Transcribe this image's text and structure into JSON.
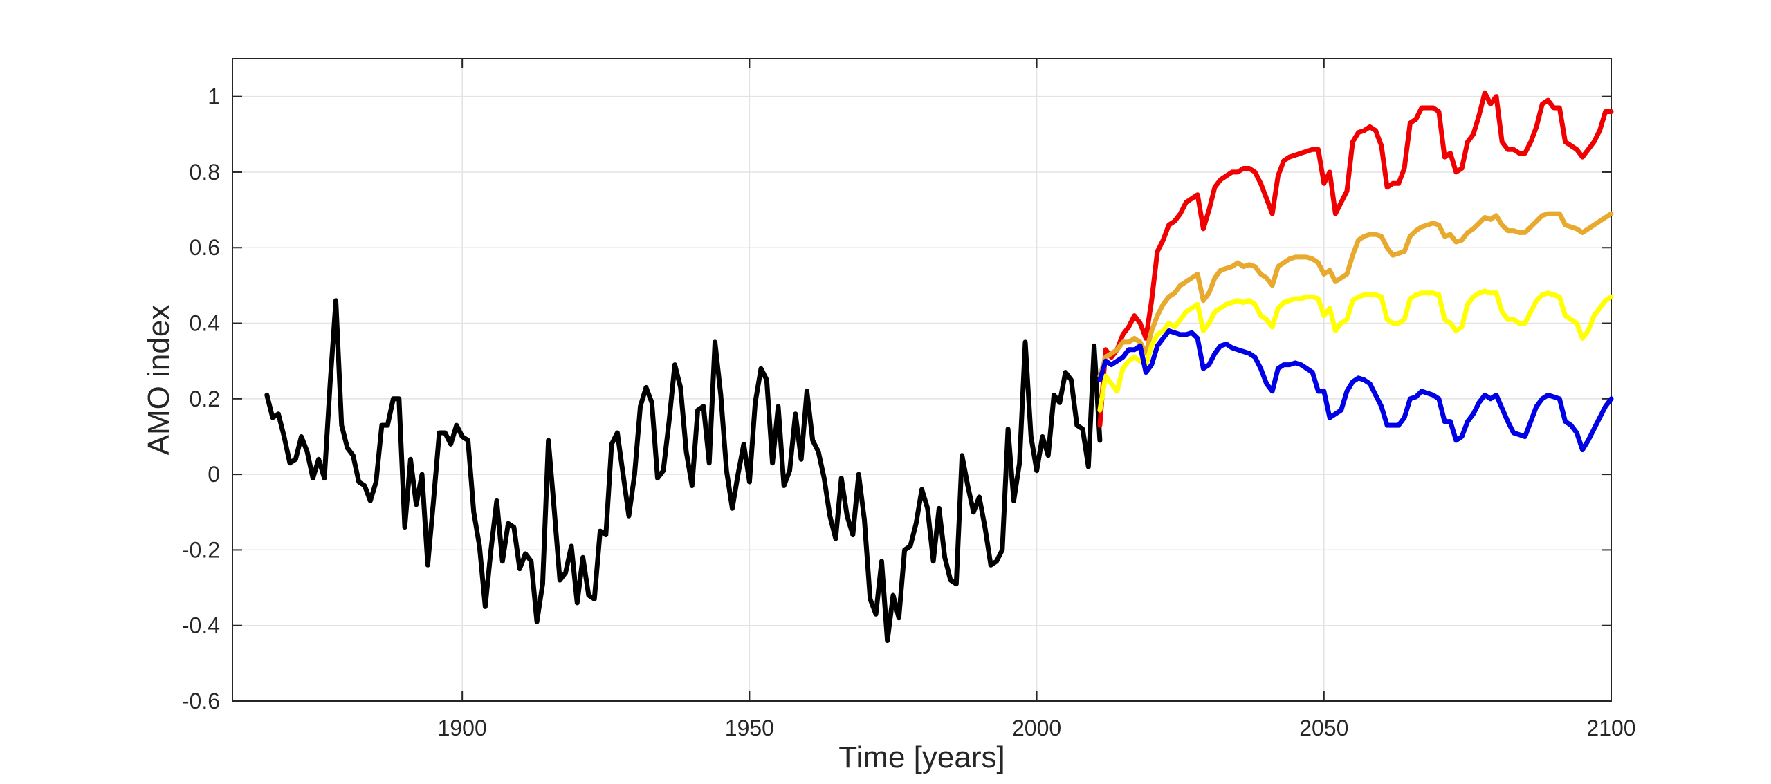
{
  "chart_data": {
    "type": "line",
    "title": "",
    "xlabel": "Time [years]",
    "ylabel": "AMO index",
    "xlim": [
      1860,
      2100
    ],
    "ylim": [
      -0.6,
      1.1
    ],
    "grid": true,
    "xticks": [
      1900,
      1950,
      2000,
      2050,
      2100
    ],
    "xtick_labels": [
      "1900",
      "1950",
      "2000",
      "2050",
      "2100"
    ],
    "yticks": [
      -0.6,
      -0.4,
      -0.2,
      0,
      0.2,
      0.4,
      0.6,
      0.8,
      1
    ],
    "ytick_labels": [
      "-0.6",
      "-0.4",
      "-0.2",
      "0",
      "0.2",
      "0.4",
      "0.6",
      "0.8",
      "1"
    ],
    "series": [
      {
        "color": "#000000",
        "x": [
          1866,
          1867,
          1868,
          1869,
          1870,
          1871,
          1872,
          1873,
          1874,
          1875,
          1876,
          1877,
          1878,
          1879,
          1880,
          1881,
          1882,
          1883,
          1884,
          1885,
          1886,
          1887,
          1888,
          1889,
          1890,
          1891,
          1892,
          1893,
          1894,
          1895,
          1896,
          1897,
          1898,
          1899,
          1900,
          1901,
          1902,
          1903,
          1904,
          1905,
          1906,
          1907,
          1908,
          1909,
          1910,
          1911,
          1912,
          1913,
          1914,
          1915,
          1916,
          1917,
          1918,
          1919,
          1920,
          1921,
          1922,
          1923,
          1924,
          1925,
          1926,
          1927,
          1928,
          1929,
          1930,
          1931,
          1932,
          1933,
          1934,
          1935,
          1936,
          1937,
          1938,
          1939,
          1940,
          1941,
          1942,
          1943,
          1944,
          1945,
          1946,
          1947,
          1948,
          1949,
          1950,
          1951,
          1952,
          1953,
          1954,
          1955,
          1956,
          1957,
          1958,
          1959,
          1960,
          1961,
          1962,
          1963,
          1964,
          1965,
          1966,
          1967,
          1968,
          1969,
          1970,
          1971,
          1972,
          1973,
          1974,
          1975,
          1976,
          1977,
          1978,
          1979,
          1980,
          1981,
          1982,
          1983,
          1984,
          1985,
          1986,
          1987,
          1988,
          1989,
          1990,
          1991,
          1992,
          1993,
          1994,
          1995,
          1996,
          1997,
          1998,
          1999,
          2000,
          2001,
          2002,
          2003,
          2004,
          2005,
          2006,
          2007,
          2008,
          2009,
          2010,
          2011
        ],
        "values": [
          0.21,
          0.15,
          0.16,
          0.1,
          0.03,
          0.04,
          0.1,
          0.06,
          -0.01,
          0.04,
          -0.01,
          0.24,
          0.46,
          0.13,
          0.07,
          0.05,
          -0.02,
          -0.03,
          -0.07,
          -0.02,
          0.13,
          0.13,
          0.2,
          0.2,
          -0.14,
          0.04,
          -0.08,
          0.0,
          -0.24,
          -0.07,
          0.11,
          0.11,
          0.08,
          0.13,
          0.1,
          0.09,
          -0.1,
          -0.19,
          -0.35,
          -0.2,
          -0.07,
          -0.23,
          -0.13,
          -0.14,
          -0.25,
          -0.21,
          -0.23,
          -0.39,
          -0.29,
          0.09,
          -0.09,
          -0.28,
          -0.26,
          -0.19,
          -0.34,
          -0.22,
          -0.32,
          -0.33,
          -0.15,
          -0.16,
          0.08,
          0.11,
          0.0,
          -0.11,
          0.0,
          0.18,
          0.23,
          0.19,
          -0.01,
          0.01,
          0.14,
          0.29,
          0.23,
          0.06,
          -0.03,
          0.17,
          0.18,
          0.03,
          0.35,
          0.21,
          0.01,
          -0.09,
          0.0,
          0.08,
          -0.02,
          0.19,
          0.28,
          0.25,
          0.03,
          0.18,
          -0.03,
          0.01,
          0.16,
          0.04,
          0.22,
          0.09,
          0.06,
          -0.01,
          -0.11,
          -0.17,
          -0.01,
          -0.11,
          -0.16,
          0.0,
          -0.12,
          -0.33,
          -0.37,
          -0.23,
          -0.44,
          -0.32,
          -0.38,
          -0.2,
          -0.19,
          -0.13,
          -0.04,
          -0.09,
          -0.23,
          -0.09,
          -0.22,
          -0.28,
          -0.29,
          0.05,
          -0.03,
          -0.1,
          -0.06,
          -0.14,
          -0.24,
          -0.23,
          -0.2,
          0.12,
          -0.07,
          0.03,
          0.35,
          0.1,
          0.01,
          0.1,
          0.05,
          0.21,
          0.19,
          0.27,
          0.25,
          0.13,
          0.12,
          0.02,
          0.34,
          0.09
        ]
      },
      {
        "color": "#f00000",
        "x": [
          2011,
          2012,
          2013,
          2014,
          2015,
          2016,
          2017,
          2018,
          2019,
          2020,
          2021,
          2022,
          2023,
          2024,
          2025,
          2026,
          2027,
          2028,
          2029,
          2030,
          2031,
          2032,
          2033,
          2034,
          2035,
          2036,
          2037,
          2038,
          2039,
          2040,
          2041,
          2042,
          2043,
          2044,
          2045,
          2046,
          2047,
          2048,
          2049,
          2050,
          2051,
          2052,
          2053,
          2054,
          2055,
          2056,
          2057,
          2058,
          2059,
          2060,
          2061,
          2062,
          2063,
          2064,
          2065,
          2066,
          2067,
          2068,
          2069,
          2070,
          2071,
          2072,
          2073,
          2074,
          2075,
          2076,
          2077,
          2078,
          2079,
          2080,
          2081,
          2082,
          2083,
          2084,
          2085,
          2086,
          2087,
          2088,
          2089,
          2090,
          2091,
          2092,
          2093,
          2094,
          2095,
          2096,
          2097,
          2098,
          2099,
          2100
        ],
        "values": [
          0.13,
          0.33,
          0.31,
          0.33,
          0.37,
          0.39,
          0.42,
          0.4,
          0.36,
          0.46,
          0.59,
          0.62,
          0.66,
          0.67,
          0.69,
          0.72,
          0.73,
          0.74,
          0.65,
          0.7,
          0.76,
          0.78,
          0.79,
          0.8,
          0.8,
          0.81,
          0.81,
          0.8,
          0.77,
          0.73,
          0.69,
          0.79,
          0.83,
          0.84,
          0.845,
          0.85,
          0.855,
          0.86,
          0.86,
          0.77,
          0.8,
          0.69,
          0.72,
          0.75,
          0.88,
          0.905,
          0.91,
          0.92,
          0.91,
          0.87,
          0.76,
          0.77,
          0.77,
          0.81,
          0.93,
          0.94,
          0.97,
          0.97,
          0.97,
          0.96,
          0.84,
          0.85,
          0.8,
          0.81,
          0.88,
          0.9,
          0.95,
          1.01,
          0.98,
          1.0,
          0.88,
          0.86,
          0.86,
          0.85,
          0.85,
          0.88,
          0.92,
          0.98,
          0.99,
          0.97,
          0.97,
          0.88,
          0.87,
          0.86,
          0.84,
          0.86,
          0.88,
          0.91,
          0.96,
          0.96
        ]
      },
      {
        "color": "#e8a92f",
        "x": [
          2011,
          2012,
          2013,
          2014,
          2015,
          2016,
          2017,
          2018,
          2019,
          2020,
          2021,
          2022,
          2023,
          2024,
          2025,
          2026,
          2027,
          2028,
          2029,
          2030,
          2031,
          2032,
          2033,
          2034,
          2035,
          2036,
          2037,
          2038,
          2039,
          2040,
          2041,
          2042,
          2043,
          2044,
          2045,
          2046,
          2047,
          2048,
          2049,
          2050,
          2051,
          2052,
          2053,
          2054,
          2055,
          2056,
          2057,
          2058,
          2059,
          2060,
          2061,
          2062,
          2063,
          2064,
          2065,
          2066,
          2067,
          2068,
          2069,
          2070,
          2071,
          2072,
          2073,
          2074,
          2075,
          2076,
          2077,
          2078,
          2079,
          2080,
          2081,
          2082,
          2083,
          2084,
          2085,
          2086,
          2087,
          2088,
          2089,
          2090,
          2091,
          2092,
          2093,
          2094,
          2095,
          2096,
          2097,
          2098,
          2099,
          2100
        ],
        "values": [
          0.26,
          0.31,
          0.32,
          0.33,
          0.35,
          0.35,
          0.36,
          0.35,
          0.32,
          0.38,
          0.42,
          0.45,
          0.47,
          0.48,
          0.5,
          0.51,
          0.52,
          0.53,
          0.46,
          0.48,
          0.52,
          0.54,
          0.545,
          0.55,
          0.56,
          0.55,
          0.555,
          0.55,
          0.53,
          0.52,
          0.5,
          0.55,
          0.56,
          0.57,
          0.575,
          0.575,
          0.575,
          0.57,
          0.56,
          0.53,
          0.54,
          0.51,
          0.52,
          0.53,
          0.58,
          0.62,
          0.63,
          0.635,
          0.635,
          0.63,
          0.6,
          0.58,
          0.585,
          0.59,
          0.63,
          0.645,
          0.655,
          0.66,
          0.665,
          0.66,
          0.63,
          0.635,
          0.615,
          0.62,
          0.64,
          0.65,
          0.665,
          0.68,
          0.675,
          0.685,
          0.66,
          0.645,
          0.645,
          0.64,
          0.64,
          0.655,
          0.67,
          0.685,
          0.69,
          0.69,
          0.69,
          0.66,
          0.655,
          0.65,
          0.64,
          0.65,
          0.66,
          0.67,
          0.68,
          0.69
        ]
      },
      {
        "color": "#ffff00",
        "x": [
          2011,
          2012,
          2013,
          2014,
          2015,
          2016,
          2017,
          2018,
          2019,
          2020,
          2021,
          2022,
          2023,
          2024,
          2025,
          2026,
          2027,
          2028,
          2029,
          2030,
          2031,
          2032,
          2033,
          2034,
          2035,
          2036,
          2037,
          2038,
          2039,
          2040,
          2041,
          2042,
          2043,
          2044,
          2045,
          2046,
          2047,
          2048,
          2049,
          2050,
          2051,
          2052,
          2053,
          2054,
          2055,
          2056,
          2057,
          2058,
          2059,
          2060,
          2061,
          2062,
          2063,
          2064,
          2065,
          2066,
          2067,
          2068,
          2069,
          2070,
          2071,
          2072,
          2073,
          2074,
          2075,
          2076,
          2077,
          2078,
          2079,
          2080,
          2081,
          2082,
          2083,
          2084,
          2085,
          2086,
          2087,
          2088,
          2089,
          2090,
          2091,
          2092,
          2093,
          2094,
          2095,
          2096,
          2097,
          2098,
          2099,
          2100
        ],
        "values": [
          0.17,
          0.26,
          0.24,
          0.22,
          0.28,
          0.3,
          0.31,
          0.3,
          0.29,
          0.34,
          0.37,
          0.38,
          0.4,
          0.39,
          0.41,
          0.43,
          0.44,
          0.45,
          0.38,
          0.4,
          0.43,
          0.44,
          0.45,
          0.455,
          0.46,
          0.455,
          0.46,
          0.45,
          0.42,
          0.41,
          0.39,
          0.44,
          0.455,
          0.46,
          0.465,
          0.465,
          0.47,
          0.47,
          0.465,
          0.42,
          0.44,
          0.38,
          0.4,
          0.41,
          0.46,
          0.47,
          0.475,
          0.475,
          0.475,
          0.47,
          0.41,
          0.4,
          0.4,
          0.41,
          0.465,
          0.475,
          0.48,
          0.48,
          0.48,
          0.475,
          0.41,
          0.4,
          0.38,
          0.39,
          0.45,
          0.47,
          0.48,
          0.485,
          0.48,
          0.48,
          0.43,
          0.41,
          0.41,
          0.4,
          0.4,
          0.43,
          0.46,
          0.475,
          0.48,
          0.475,
          0.47,
          0.42,
          0.41,
          0.4,
          0.36,
          0.38,
          0.42,
          0.44,
          0.46,
          0.47
        ]
      },
      {
        "color": "#0000e6",
        "x": [
          2011,
          2012,
          2013,
          2014,
          2015,
          2016,
          2017,
          2018,
          2019,
          2020,
          2021,
          2022,
          2023,
          2024,
          2025,
          2026,
          2027,
          2028,
          2029,
          2030,
          2031,
          2032,
          2033,
          2034,
          2035,
          2036,
          2037,
          2038,
          2039,
          2040,
          2041,
          2042,
          2043,
          2044,
          2045,
          2046,
          2047,
          2048,
          2049,
          2050,
          2051,
          2052,
          2053,
          2054,
          2055,
          2056,
          2057,
          2058,
          2059,
          2060,
          2061,
          2062,
          2063,
          2064,
          2065,
          2066,
          2067,
          2068,
          2069,
          2070,
          2071,
          2072,
          2073,
          2074,
          2075,
          2076,
          2077,
          2078,
          2079,
          2080,
          2081,
          2082,
          2083,
          2084,
          2085,
          2086,
          2087,
          2088,
          2089,
          2090,
          2091,
          2092,
          2093,
          2094,
          2095,
          2096,
          2097,
          2098,
          2099,
          2100
        ],
        "values": [
          0.25,
          0.3,
          0.29,
          0.3,
          0.31,
          0.33,
          0.33,
          0.34,
          0.27,
          0.29,
          0.34,
          0.36,
          0.38,
          0.375,
          0.37,
          0.37,
          0.375,
          0.36,
          0.28,
          0.29,
          0.32,
          0.34,
          0.345,
          0.335,
          0.33,
          0.325,
          0.32,
          0.31,
          0.28,
          0.24,
          0.22,
          0.28,
          0.29,
          0.29,
          0.295,
          0.29,
          0.28,
          0.27,
          0.22,
          0.22,
          0.15,
          0.16,
          0.17,
          0.22,
          0.245,
          0.255,
          0.25,
          0.24,
          0.21,
          0.18,
          0.13,
          0.13,
          0.13,
          0.15,
          0.2,
          0.205,
          0.22,
          0.215,
          0.21,
          0.2,
          0.14,
          0.14,
          0.09,
          0.1,
          0.14,
          0.16,
          0.19,
          0.21,
          0.2,
          0.21,
          0.175,
          0.14,
          0.11,
          0.105,
          0.1,
          0.14,
          0.18,
          0.2,
          0.21,
          0.205,
          0.2,
          0.14,
          0.13,
          0.11,
          0.065,
          0.09,
          0.12,
          0.15,
          0.18,
          0.2
        ]
      }
    ]
  }
}
